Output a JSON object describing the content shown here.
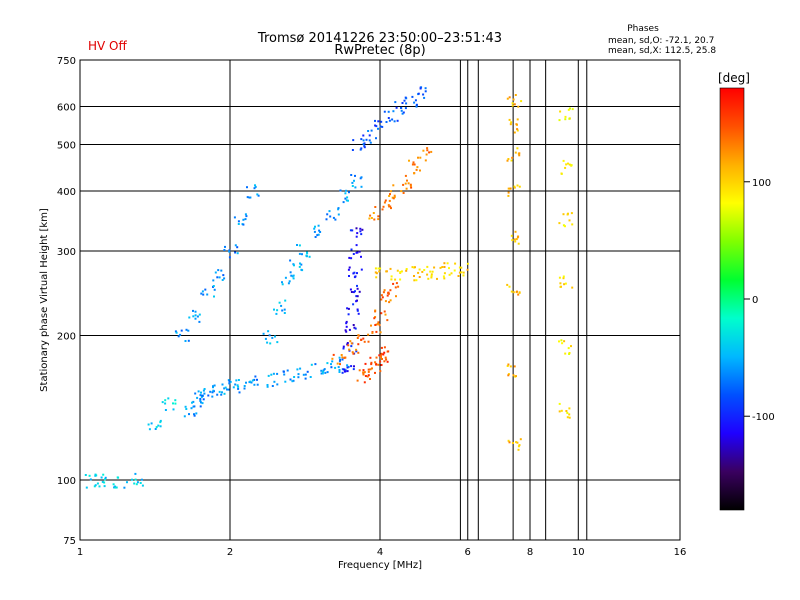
{
  "chart_data": {
    "type": "scatter",
    "title_line1": "Tromsø 20141226 23:50:00–23:51:43",
    "title_line2": "RwPretec (8p)",
    "status_label": "HV Off",
    "xlabel": "Frequency [MHz]",
    "ylabel": "Stationary phase Virtual Height [km]",
    "x_scale": "log",
    "y_scale": "log",
    "xlim": [
      1,
      16
    ],
    "ylim": [
      75,
      750
    ],
    "x_ticks": [
      "1",
      "2",
      "4",
      "6",
      "8",
      "10",
      "16"
    ],
    "x_tick_values": [
      1,
      2,
      4,
      6,
      8,
      10,
      16
    ],
    "y_ticks": [
      "75",
      "100",
      "200",
      "300",
      "400",
      "500",
      "600",
      "750"
    ],
    "y_tick_values": [
      75,
      100,
      200,
      300,
      400,
      500,
      600,
      750
    ],
    "extra_vertical_lines_MHz": [
      5.8,
      6.3,
      7.4,
      8.6,
      10.4
    ],
    "grid": true,
    "phases_box": {
      "heading": "Phases",
      "line_o": "mean, sd,O: -72.1, 20.7",
      "line_x": "mean, sd,X: 112.5, 25.8"
    },
    "colorbar": {
      "label": "[deg]",
      "range": [
        -180,
        180
      ],
      "ticks": [
        "100",
        "0",
        "-100"
      ],
      "tick_values": [
        100,
        0,
        -100
      ],
      "gradient": [
        "#000000",
        "#3a0060",
        "#1f00ff",
        "#0050ff",
        "#00b8ff",
        "#00ffcc",
        "#00ff30",
        "#80ff00",
        "#ffff00",
        "#ffb000",
        "#ff5000",
        "#ff0000"
      ]
    },
    "colors": {
      "status": "#e00000",
      "grid": "#000000"
    },
    "clusters": [
      {
        "name": "O-trace lower",
        "x": [
          1.65,
          1.7,
          1.75,
          1.8,
          1.9,
          2.0,
          2.1,
          2.2,
          2.4,
          2.6,
          2.8,
          3.0,
          3.2,
          3.4
        ],
        "y": [
          140,
          145,
          150,
          155,
          155,
          157,
          158,
          160,
          162,
          165,
          168,
          170,
          172,
          175
        ],
        "phase": -60
      },
      {
        "name": "O-trace spread F low",
        "x": [
          1.6,
          1.7,
          1.8,
          1.9,
          2.0,
          2.1,
          2.2
        ],
        "y": [
          200,
          220,
          250,
          270,
          300,
          350,
          400
        ],
        "phase": -60
      },
      {
        "name": "O-trace spread band",
        "x": [
          2.4,
          2.5,
          2.6,
          2.7,
          2.8,
          3.0,
          3.2,
          3.4,
          3.6
        ],
        "y": [
          200,
          230,
          260,
          280,
          300,
          330,
          360,
          390,
          420
        ],
        "phase": -55
      },
      {
        "name": "O cusp vertical",
        "x": [
          3.45,
          3.47,
          3.5,
          3.5,
          3.52,
          3.55,
          3.55,
          3.57
        ],
        "y": [
          170,
          190,
          210,
          230,
          250,
          270,
          300,
          330
        ],
        "phase": -110
      },
      {
        "name": "X-trace",
        "x": [
          3.3,
          3.5,
          3.7,
          3.9,
          4.0,
          4.1,
          4.2
        ],
        "y": [
          180,
          190,
          200,
          210,
          220,
          240,
          250
        ],
        "phase": 140
      },
      {
        "name": "X cusp lower",
        "x": [
          3.7,
          3.8,
          3.9,
          4.0,
          4.1
        ],
        "y": [
          165,
          170,
          175,
          180,
          185
        ],
        "phase": 150
      },
      {
        "name": "X high",
        "x": [
          3.9,
          4.1,
          4.3,
          4.5,
          4.7,
          4.9
        ],
        "y": [
          360,
          380,
          400,
          420,
          450,
          480
        ],
        "phase": 130
      },
      {
        "name": "X plateau",
        "x": [
          4.0,
          4.3,
          4.6,
          4.9,
          5.2,
          5.5,
          5.8
        ],
        "y": [
          270,
          270,
          270,
          272,
          272,
          275,
          276
        ],
        "phase": 100
      },
      {
        "name": "scattered high",
        "x": [
          3.6,
          3.8,
          4.0,
          4.2,
          4.4,
          4.6,
          4.8
        ],
        "y": [
          500,
          520,
          550,
          580,
          600,
          620,
          640
        ],
        "phase": -80
      },
      {
        "name": "interference 7.4",
        "x": [
          7.4,
          7.4,
          7.4,
          7.4,
          7.4,
          7.4,
          7.4,
          7.4
        ],
        "y": [
          120,
          170,
          250,
          320,
          400,
          480,
          550,
          620
        ],
        "phase": 110
      },
      {
        "name": "interference 9.4",
        "x": [
          9.4,
          9.4,
          9.4,
          9.4,
          9.4,
          9.4
        ],
        "y": [
          140,
          190,
          260,
          350,
          450,
          580
        ],
        "phase": 90
      },
      {
        "name": "low freq",
        "x": [
          1.05,
          1.1,
          1.2,
          1.3,
          1.4,
          1.5
        ],
        "y": [
          100,
          100,
          100,
          101,
          130,
          145
        ],
        "phase": -40
      }
    ]
  }
}
